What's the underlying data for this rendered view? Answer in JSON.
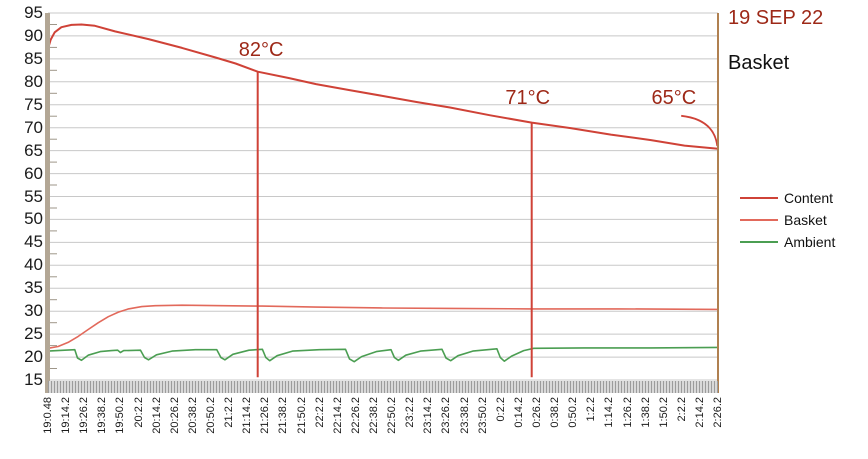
{
  "header": {
    "date": "19 SEP 22",
    "subtitle": "Basket",
    "date_color": "#9d2817"
  },
  "colors": {
    "content": "#cf4237",
    "basket": "#e2695b",
    "ambient": "#4b9e52",
    "annotation_text": "#9d2817",
    "grid": "#c8c8c8",
    "minor_tick": "#9e9689",
    "axis_bar": "#b3a795",
    "right_border": "#b08050",
    "strip_bg": "#d9d9d9",
    "strip_tick": "#9c9c9c",
    "tick_label": "#1a1a1a"
  },
  "chart_data": {
    "type": "line",
    "title": "19 SEP 22",
    "subtitle": "Basket",
    "xlabel": "",
    "ylabel": "",
    "ylim": [
      15,
      95
    ],
    "yticks": [
      95,
      90,
      85,
      80,
      75,
      70,
      65,
      60,
      55,
      50,
      45,
      40,
      35,
      30,
      25,
      20,
      15
    ],
    "ytick_minor_step": 2.5,
    "grid": "horizontal",
    "legend_position": "right",
    "x_units": "fraction of x-axis span (19:0.48 to 2:26.2)",
    "xticklabels": [
      "19:0.48",
      "19:14.2",
      "19:26.2",
      "19:38.2",
      "19:50.2",
      "20:2.2",
      "20:14.2",
      "20:26.2",
      "20:38.2",
      "20:50.2",
      "21:2.2",
      "21:14.2",
      "21:26.2",
      "21:38.2",
      "21:50.2",
      "22:2.2",
      "22:14.2",
      "22:26.2",
      "22:38.2",
      "22:50.2",
      "23:2.2",
      "23:14.2",
      "23:26.2",
      "23:38.2",
      "23:50.2",
      "0:2.2",
      "0:14.2",
      "0:26.2",
      "0:38.2",
      "0:50.2",
      "1:2.2",
      "1:14.2",
      "1:26.2",
      "1:38.2",
      "1:50.2",
      "2:2.2",
      "2:14.2",
      "2:26.2"
    ],
    "series": [
      {
        "name": "Content",
        "color": "#cf4237",
        "width": 2,
        "points": [
          [
            0,
            87.2
          ],
          [
            0.004,
            89.2
          ],
          [
            0.01,
            90.8
          ],
          [
            0.02,
            91.9
          ],
          [
            0.035,
            92.4
          ],
          [
            0.05,
            92.5
          ],
          [
            0.07,
            92.2
          ],
          [
            0.1,
            91.0
          ],
          [
            0.15,
            89.3
          ],
          [
            0.2,
            87.4
          ],
          [
            0.25,
            85.3
          ],
          [
            0.28,
            84.0
          ],
          [
            0.313,
            82.2
          ],
          [
            0.36,
            80.8
          ],
          [
            0.4,
            79.5
          ],
          [
            0.45,
            78.2
          ],
          [
            0.5,
            76.9
          ],
          [
            0.55,
            75.6
          ],
          [
            0.6,
            74.4
          ],
          [
            0.66,
            72.7
          ],
          [
            0.722,
            71.1
          ],
          [
            0.78,
            69.9
          ],
          [
            0.84,
            68.5
          ],
          [
            0.9,
            67.3
          ],
          [
            0.95,
            66.1
          ],
          [
            1,
            65.4
          ]
        ]
      },
      {
        "name": "Basket",
        "color": "#e2695b",
        "width": 1.6,
        "points": [
          [
            0,
            21.9
          ],
          [
            0.015,
            22.3
          ],
          [
            0.03,
            23.2
          ],
          [
            0.045,
            24.5
          ],
          [
            0.06,
            26.0
          ],
          [
            0.075,
            27.5
          ],
          [
            0.09,
            28.8
          ],
          [
            0.105,
            29.8
          ],
          [
            0.12,
            30.5
          ],
          [
            0.14,
            31.0
          ],
          [
            0.16,
            31.2
          ],
          [
            0.2,
            31.3
          ],
          [
            0.26,
            31.2
          ],
          [
            0.32,
            31.1
          ],
          [
            0.4,
            30.9
          ],
          [
            0.5,
            30.7
          ],
          [
            0.6,
            30.6
          ],
          [
            0.722,
            30.5
          ],
          [
            0.85,
            30.5
          ],
          [
            1,
            30.4
          ]
        ]
      },
      {
        "name": "Ambient",
        "color": "#4b9e52",
        "width": 1.6,
        "points": [
          [
            0,
            21.3
          ],
          [
            0.025,
            21.5
          ],
          [
            0.04,
            21.6
          ],
          [
            0.044,
            19.8
          ],
          [
            0.05,
            19.3
          ],
          [
            0.06,
            20.4
          ],
          [
            0.078,
            21.2
          ],
          [
            0.095,
            21.4
          ],
          [
            0.104,
            21.5
          ],
          [
            0.108,
            21.0
          ],
          [
            0.113,
            21.4
          ],
          [
            0.138,
            21.5
          ],
          [
            0.144,
            19.9
          ],
          [
            0.15,
            19.4
          ],
          [
            0.162,
            20.5
          ],
          [
            0.185,
            21.3
          ],
          [
            0.22,
            21.6
          ],
          [
            0.252,
            21.6
          ],
          [
            0.258,
            19.9
          ],
          [
            0.264,
            19.4
          ],
          [
            0.276,
            20.6
          ],
          [
            0.3,
            21.5
          ],
          [
            0.32,
            21.7
          ],
          [
            0.325,
            19.9
          ],
          [
            0.331,
            19.2
          ],
          [
            0.342,
            20.3
          ],
          [
            0.365,
            21.3
          ],
          [
            0.405,
            21.6
          ],
          [
            0.444,
            21.7
          ],
          [
            0.45,
            19.6
          ],
          [
            0.457,
            19.0
          ],
          [
            0.468,
            20.1
          ],
          [
            0.49,
            21.2
          ],
          [
            0.512,
            21.6
          ],
          [
            0.517,
            19.9
          ],
          [
            0.523,
            19.3
          ],
          [
            0.534,
            20.4
          ],
          [
            0.556,
            21.3
          ],
          [
            0.588,
            21.7
          ],
          [
            0.594,
            19.8
          ],
          [
            0.601,
            19.2
          ],
          [
            0.612,
            20.3
          ],
          [
            0.634,
            21.3
          ],
          [
            0.67,
            21.8
          ],
          [
            0.675,
            19.9
          ],
          [
            0.681,
            19.1
          ],
          [
            0.692,
            20.2
          ],
          [
            0.71,
            21.4
          ],
          [
            0.725,
            21.9
          ],
          [
            0.8,
            22.0
          ],
          [
            0.9,
            22.0
          ],
          [
            1,
            22.1
          ]
        ]
      }
    ],
    "annotations": [
      {
        "text": "82°C",
        "type": "vline",
        "x": 0.313,
        "top_value": 82.2,
        "bottom_value": 15.6,
        "label_x": 0.318,
        "label_bottom_value": 84.3
      },
      {
        "text": "71°C",
        "type": "vline",
        "x": 0.722,
        "top_value": 71.1,
        "bottom_value": 15.6,
        "label_x": 0.716,
        "label_bottom_value": 73.9
      },
      {
        "text": "65°C",
        "type": "leader",
        "label_x": 0.934,
        "label_bottom_value": 73.9,
        "leader_from": [
          0.945,
          72.6
        ],
        "leader_ctrl": [
          0.994,
          71.8
        ],
        "leader_to": [
          0.999,
          66.0
        ]
      }
    ]
  }
}
